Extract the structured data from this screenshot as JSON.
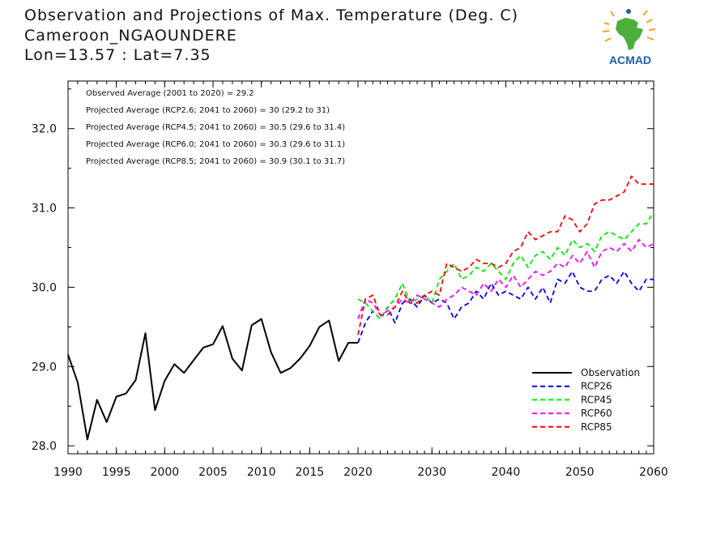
{
  "header": {
    "title_line1": "Observation and Projections of Max. Temperature (Deg. C)",
    "title_line2": "Cameroon_NGAOUNDERE",
    "title_line3": "Lon=13.57 : Lat=7.35"
  },
  "logo": {
    "text": "ACMAD",
    "icon": "africa-map-logo"
  },
  "colors": {
    "observation": "#000000",
    "rcp26": "#0000ff",
    "rcp45": "#00ee00",
    "rcp60": "#ff00ff",
    "rcp85": "#ff0000",
    "logo_blue": "#1f5fa8",
    "logo_green": "#4caf3c",
    "logo_orange": "#f2a31b"
  },
  "chart_data": {
    "type": "line",
    "ylim": [
      27.9,
      32.6
    ],
    "yticks": [
      28.0,
      29.0,
      30.0,
      31.0,
      32.0
    ],
    "ytick_labels": [
      "28.0",
      "29.0",
      "30.0",
      "31.0",
      "32.0"
    ],
    "x_segments": [
      {
        "range": [
          1990,
          2020
        ],
        "ticks": [
          1990,
          1995,
          2000,
          2005,
          2010,
          2015,
          2020
        ]
      },
      {
        "range": [
          2020,
          2060
        ],
        "ticks": [
          2030,
          2040,
          2050,
          2060
        ]
      }
    ],
    "xtick_labels": [
      "1990",
      "1995",
      "2000",
      "2005",
      "2010",
      "2015",
      "2020",
      "2030",
      "2040",
      "2050",
      "2060"
    ],
    "annotations": [
      "Observed Average (2001 to 2020) = 29.2",
      "Projected Average (RCP2.6; 2041 to 2060) = 30 (29.2 to 31)",
      "Projected Average (RCP4.5; 2041 to 2060) = 30.5 (29.6 to 31.4)",
      "Projected Average (RCP6.0; 2041 to 2060) = 30.3 (29.6 to 31.1)",
      "Projected Average (RCP8.5; 2041 to 2060) = 30.9 (30.1 to 31.7)"
    ],
    "legend_position": "bottom-right",
    "series": [
      {
        "name": "Observation",
        "key": "observation",
        "style": "solid",
        "x": [
          1990,
          1991,
          1992,
          1993,
          1994,
          1995,
          1996,
          1997,
          1998,
          1999,
          2000,
          2001,
          2002,
          2003,
          2004,
          2005,
          2006,
          2007,
          2008,
          2009,
          2010,
          2011,
          2012,
          2013,
          2014,
          2015,
          2016,
          2017,
          2018,
          2019,
          2020
        ],
        "y": [
          29.15,
          28.8,
          28.08,
          28.58,
          28.3,
          28.62,
          28.66,
          28.83,
          29.42,
          28.45,
          28.82,
          29.03,
          28.92,
          29.08,
          29.24,
          29.28,
          29.51,
          29.1,
          28.95,
          29.52,
          29.6,
          29.18,
          28.92,
          28.98,
          29.1,
          29.26,
          29.5,
          29.58,
          29.07,
          29.3,
          29.3
        ]
      },
      {
        "name": "RCP26",
        "key": "rcp26",
        "style": "dashed",
        "x": [
          2020,
          2021,
          2022,
          2023,
          2024,
          2025,
          2026,
          2027,
          2028,
          2029,
          2030,
          2031,
          2032,
          2033,
          2034,
          2035,
          2036,
          2037,
          2038,
          2039,
          2040,
          2041,
          2042,
          2043,
          2044,
          2045,
          2046,
          2047,
          2048,
          2049,
          2050,
          2051,
          2052,
          2053,
          2054,
          2055,
          2056,
          2057,
          2058,
          2059,
          2060
        ],
        "y": [
          29.3,
          29.55,
          29.7,
          29.6,
          29.75,
          29.55,
          29.8,
          29.85,
          29.75,
          29.9,
          29.8,
          29.85,
          29.8,
          29.6,
          29.75,
          29.8,
          29.95,
          29.85,
          30.05,
          29.9,
          29.95,
          29.9,
          29.85,
          30.0,
          29.85,
          30.0,
          29.8,
          30.1,
          30.05,
          30.2,
          30.0,
          29.95,
          29.95,
          30.1,
          30.15,
          30.05,
          30.2,
          30.05,
          29.95,
          30.1,
          30.1
        ]
      },
      {
        "name": "RCP45",
        "key": "rcp45",
        "style": "dashed",
        "x": [
          2020,
          2021,
          2022,
          2023,
          2024,
          2025,
          2026,
          2027,
          2028,
          2029,
          2030,
          2031,
          2032,
          2033,
          2034,
          2035,
          2036,
          2037,
          2038,
          2039,
          2040,
          2041,
          2042,
          2043,
          2044,
          2045,
          2046,
          2047,
          2048,
          2049,
          2050,
          2051,
          2052,
          2053,
          2054,
          2055,
          2056,
          2057,
          2058,
          2059,
          2060
        ],
        "y": [
          29.85,
          29.8,
          29.7,
          29.6,
          29.75,
          29.85,
          30.05,
          29.8,
          29.85,
          29.9,
          29.8,
          30.1,
          30.2,
          30.3,
          30.1,
          30.15,
          30.25,
          30.2,
          30.3,
          30.2,
          30.1,
          30.3,
          30.4,
          30.25,
          30.4,
          30.45,
          30.35,
          30.5,
          30.4,
          30.6,
          30.5,
          30.55,
          30.45,
          30.65,
          30.7,
          30.65,
          30.6,
          30.7,
          30.8,
          30.8,
          30.95
        ]
      },
      {
        "name": "RCP60",
        "key": "rcp60",
        "style": "dashed",
        "x": [
          2020,
          2021,
          2022,
          2023,
          2024,
          2025,
          2026,
          2027,
          2028,
          2029,
          2030,
          2031,
          2032,
          2033,
          2034,
          2035,
          2036,
          2037,
          2038,
          2039,
          2040,
          2041,
          2042,
          2043,
          2044,
          2045,
          2046,
          2047,
          2048,
          2049,
          2050,
          2051,
          2052,
          2053,
          2054,
          2055,
          2056,
          2057,
          2058,
          2059,
          2060
        ],
        "y": [
          29.6,
          29.85,
          29.8,
          29.65,
          29.7,
          29.75,
          29.85,
          29.8,
          29.9,
          29.85,
          29.8,
          29.75,
          29.85,
          29.9,
          30.0,
          29.95,
          29.9,
          30.05,
          29.95,
          30.1,
          30.0,
          30.15,
          30.0,
          30.1,
          30.2,
          30.15,
          30.2,
          30.3,
          30.25,
          30.4,
          30.3,
          30.45,
          30.25,
          30.45,
          30.5,
          30.45,
          30.55,
          30.45,
          30.6,
          30.5,
          30.55
        ]
      },
      {
        "name": "RCP85",
        "key": "rcp85",
        "style": "dashed",
        "x": [
          2020,
          2021,
          2022,
          2023,
          2024,
          2025,
          2026,
          2027,
          2028,
          2029,
          2030,
          2031,
          2032,
          2033,
          2034,
          2035,
          2036,
          2037,
          2038,
          2039,
          2040,
          2041,
          2042,
          2043,
          2044,
          2045,
          2046,
          2047,
          2048,
          2049,
          2050,
          2051,
          2052,
          2053,
          2054,
          2055,
          2056,
          2057,
          2058,
          2059,
          2060
        ],
        "y": [
          29.4,
          29.85,
          29.9,
          29.65,
          29.65,
          29.75,
          29.95,
          29.8,
          29.8,
          29.9,
          29.95,
          29.9,
          30.3,
          30.25,
          30.2,
          30.25,
          30.35,
          30.3,
          30.3,
          30.25,
          30.3,
          30.45,
          30.5,
          30.7,
          30.6,
          30.65,
          30.7,
          30.7,
          30.9,
          30.85,
          30.7,
          30.8,
          31.05,
          31.1,
          31.1,
          31.15,
          31.2,
          31.4,
          31.3,
          31.3,
          31.3
        ]
      }
    ]
  }
}
